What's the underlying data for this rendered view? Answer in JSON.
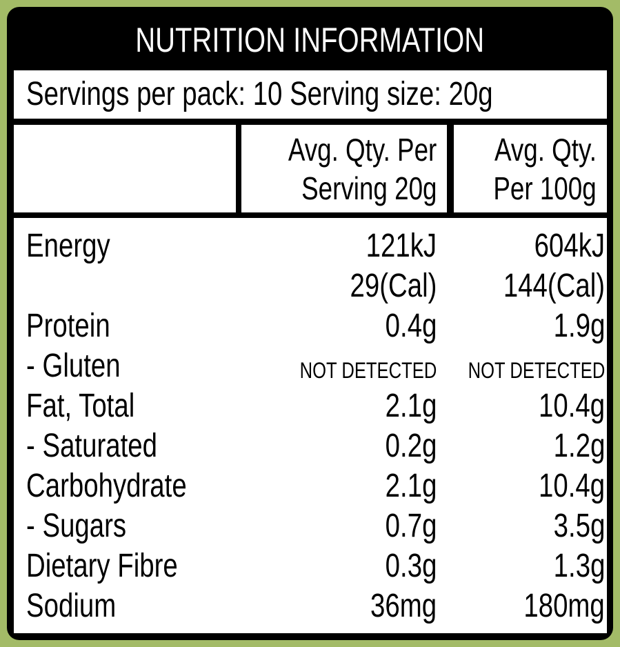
{
  "title": "NUTRITION INFORMATION",
  "servings": "Servings per pack: 10 Serving size: 20g",
  "columns": [
    [
      "Avg. Qty. Per",
      "Serving 20g"
    ],
    [
      "Avg. Qty.",
      "Per 100g"
    ]
  ],
  "rows": [
    {
      "label": "Energy",
      "values": [
        [
          "121kJ",
          "29(Cal)"
        ],
        [
          "604kJ",
          "144(Cal)"
        ]
      ]
    },
    {
      "label": "Protein",
      "values": [
        [
          "0.4g"
        ],
        [
          "1.9g"
        ]
      ]
    },
    {
      "label": "- Gluten",
      "values": [
        [
          "NOT DETECTED"
        ],
        [
          "NOT DETECTED"
        ]
      ],
      "small_values": true
    },
    {
      "label": "Fat, Total",
      "values": [
        [
          "2.1g"
        ],
        [
          "10.4g"
        ]
      ]
    },
    {
      "label": "- Saturated",
      "values": [
        [
          "0.2g"
        ],
        [
          "1.2g"
        ]
      ]
    },
    {
      "label": "Carbohydrate",
      "values": [
        [
          "2.1g"
        ],
        [
          "10.4g"
        ]
      ]
    },
    {
      "label": "- Sugars",
      "values": [
        [
          "0.7g"
        ],
        [
          "3.5g"
        ]
      ]
    },
    {
      "label": "Dietary Fibre",
      "values": [
        [
          "0.3g"
        ],
        [
          "1.3g"
        ]
      ]
    },
    {
      "label": "Sodium",
      "values": [
        [
          "36mg"
        ],
        [
          "180mg"
        ]
      ]
    }
  ]
}
